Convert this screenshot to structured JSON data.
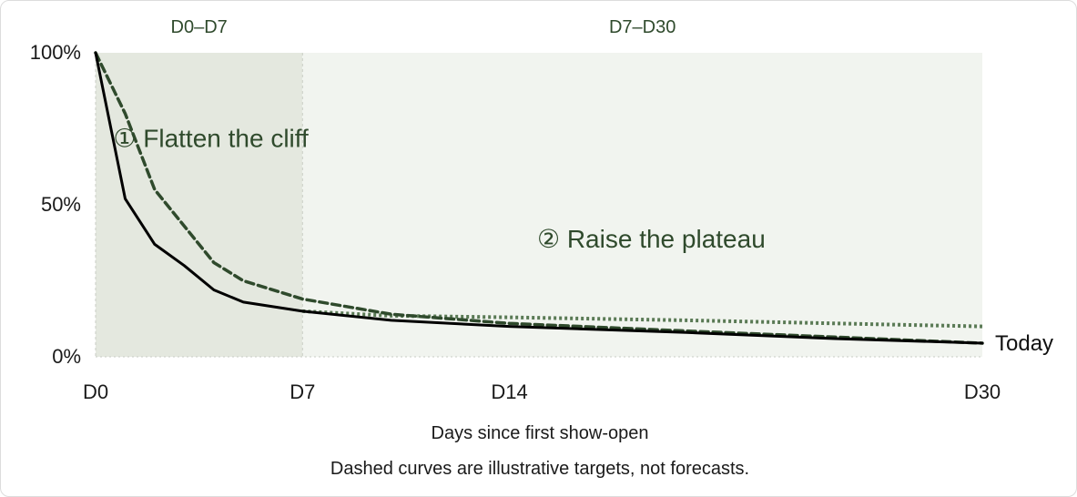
{
  "chart_data": {
    "type": "line",
    "xlabel": "Days since first show-open",
    "ylabel": "",
    "xlim": [
      0,
      30
    ],
    "ylim": [
      0,
      100
    ],
    "x_ticks": [
      {
        "value": 0,
        "label": "D0"
      },
      {
        "value": 7,
        "label": "D7"
      },
      {
        "value": 14,
        "label": "D14"
      },
      {
        "value": 30,
        "label": "D30"
      }
    ],
    "y_ticks": [
      {
        "value": 0,
        "label": "0%"
      },
      {
        "value": 50,
        "label": "50%"
      },
      {
        "value": 100,
        "label": "100%"
      }
    ],
    "grid": false,
    "bands": [
      {
        "x_start": 0,
        "x_end": 7,
        "label": "D0–D7",
        "color": "#e4e8df"
      },
      {
        "x_start": 7,
        "x_end": 30,
        "label": "D7–D30",
        "color": "#f1f4ef"
      }
    ],
    "annotations": [
      {
        "text": "① Flatten the cliff",
        "x": 3.9,
        "y": 69
      },
      {
        "text": "② Raise the plateau",
        "x": 18.8,
        "y": 36
      }
    ],
    "series": [
      {
        "name": "Today",
        "style": "solid",
        "color": "#000000",
        "x": [
          0,
          1,
          2,
          3,
          4,
          5,
          7,
          10,
          14,
          20,
          25,
          30
        ],
        "y": [
          100,
          52,
          37,
          30,
          22,
          18,
          15,
          12,
          10,
          8,
          6,
          4.5
        ]
      },
      {
        "name": "",
        "style": "dashed",
        "color": "#2f4a2c",
        "x": [
          0,
          1,
          2,
          3,
          4,
          5,
          7,
          10,
          14,
          20,
          25,
          30
        ],
        "y": [
          100,
          80,
          55,
          43,
          31,
          25,
          19,
          14,
          11,
          8.5,
          6.5,
          4.5
        ]
      },
      {
        "name": "",
        "style": "dotted",
        "color": "#5a7a55",
        "x": [
          7,
          10,
          14,
          20,
          25,
          30
        ],
        "y": [
          15,
          13.5,
          13,
          12,
          11,
          10
        ]
      }
    ]
  },
  "footnote": "Dashed curves are illustrative targets, not forecasts."
}
